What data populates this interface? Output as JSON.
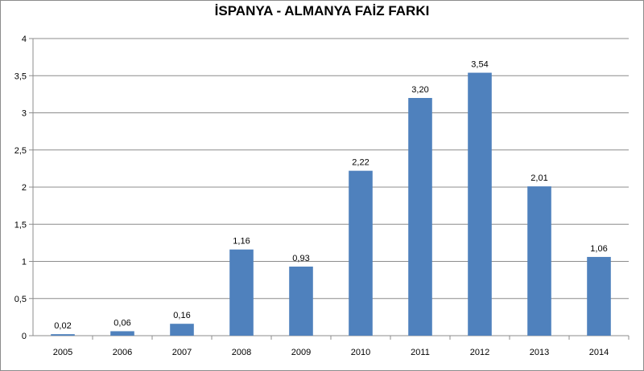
{
  "chart_data": {
    "type": "bar",
    "title": "İSPANYA - ALMANYA FAİZ FARKI",
    "xlabel": "",
    "ylabel": "",
    "categories": [
      "2005",
      "2006",
      "2007",
      "2008",
      "2009",
      "2010",
      "2011",
      "2012",
      "2013",
      "2014"
    ],
    "values": [
      0.02,
      0.06,
      0.16,
      1.16,
      0.93,
      2.22,
      3.2,
      3.54,
      2.01,
      1.06
    ],
    "data_labels": [
      "0,02",
      "0,06",
      "0,16",
      "1,16",
      "0,93",
      "2,22",
      "3,20",
      "3,54",
      "2,01",
      "1,06"
    ],
    "ylim": [
      0,
      4
    ],
    "yticks": [
      0,
      0.5,
      1,
      1.5,
      2,
      2.5,
      3,
      3.5,
      4
    ],
    "ytick_labels": [
      "0",
      "0,5",
      "1",
      "1,5",
      "2",
      "2,5",
      "3",
      "3,5",
      "4"
    ],
    "grid": true,
    "legend": "none",
    "colors": {
      "bar": "#4f81bd",
      "grid": "#8c8c8c",
      "axis": "#8c8c8c"
    }
  }
}
